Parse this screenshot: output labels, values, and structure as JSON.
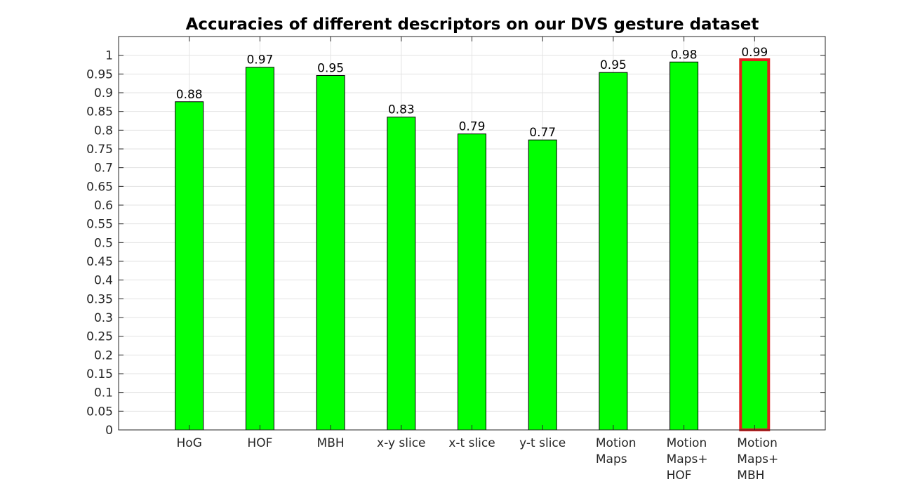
{
  "chart_data": {
    "type": "bar",
    "title": "Accuracies of different descriptors on our DVS gesture dataset",
    "xlabel": "",
    "ylabel": "",
    "ylim": [
      0,
      1.05
    ],
    "yticks": [
      "0",
      "0.05",
      "0.1",
      "0.15",
      "0.2",
      "0.25",
      "0.3",
      "0.35",
      "0.4",
      "0.45",
      "0.5",
      "0.55",
      "0.6",
      "0.65",
      "0.7",
      "0.75",
      "0.8",
      "0.85",
      "0.9",
      "0.95",
      "1"
    ],
    "grid": true,
    "categories": [
      [
        "HoG"
      ],
      [
        "HOF"
      ],
      [
        "MBH"
      ],
      [
        "x-y slice"
      ],
      [
        "x-t slice"
      ],
      [
        "y-t slice"
      ],
      [
        "Motion",
        "Maps"
      ],
      [
        "Motion",
        "Maps+",
        "HOF"
      ],
      [
        "Motion",
        "Maps+",
        "MBH"
      ]
    ],
    "values": [
      0.876,
      0.968,
      0.946,
      0.835,
      0.79,
      0.774,
      0.954,
      0.982,
      0.988
    ],
    "data_labels": [
      "0.88",
      "0.97",
      "0.95",
      "0.83",
      "0.79",
      "0.77",
      "0.95",
      "0.98",
      "0.99"
    ],
    "bar_color": "#00ff00",
    "bar_edge_color": "#000000",
    "highlight_index": 8,
    "highlight_edge_color": "#e02020"
  }
}
